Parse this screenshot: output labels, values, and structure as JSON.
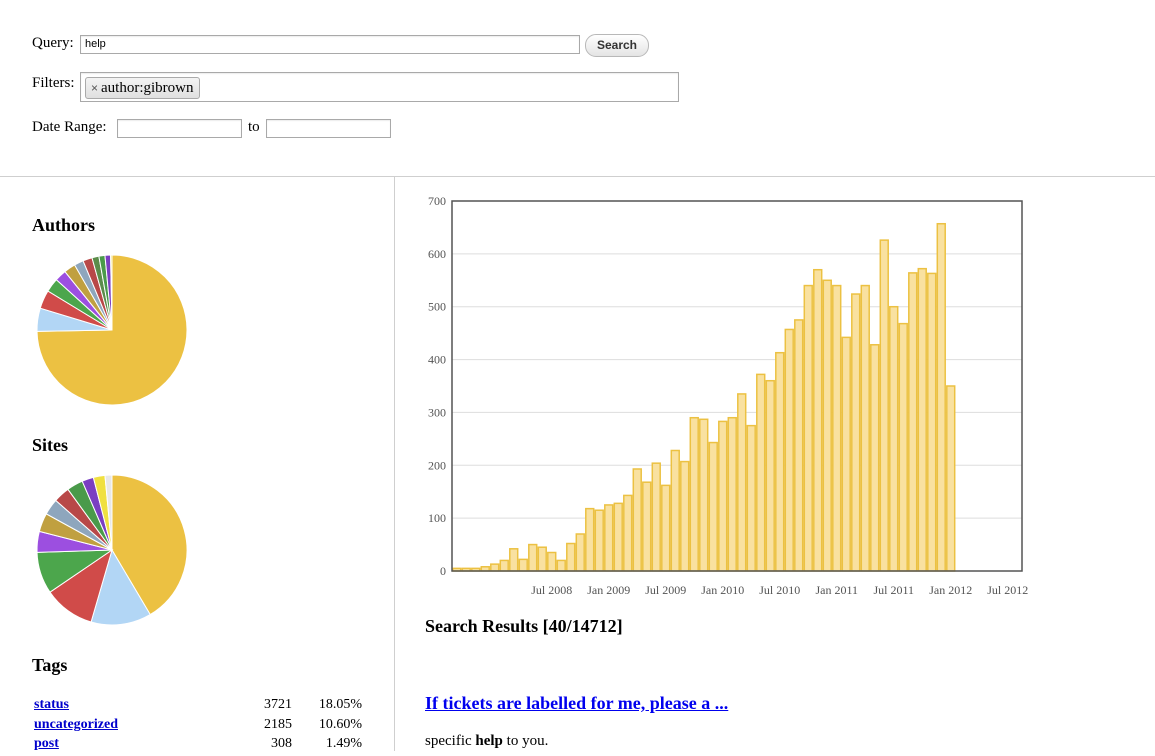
{
  "search": {
    "query_label": "Query:",
    "query_value": "help",
    "search_button": "Search",
    "filters_label": "Filters:",
    "filter_chip_remove": "×",
    "filter_chip": "author:gibrown",
    "date_range_label": "Date Range:",
    "date_to_label": "to",
    "date_from_value": "",
    "date_to_value": ""
  },
  "sidebar": {
    "authors_heading": "Authors",
    "sites_heading": "Sites",
    "tags_heading": "Tags",
    "tags": [
      {
        "name": "status",
        "count": "3721",
        "percent": "18.05%"
      },
      {
        "name": "uncategorized",
        "count": "2185",
        "percent": "10.60%"
      },
      {
        "name": "post",
        "count": "308",
        "percent": "1.49%"
      }
    ]
  },
  "pies": {
    "authors": {
      "values": [
        74.7,
        5.0,
        4.0,
        3.0,
        2.5,
        2.5,
        2.0,
        2.0,
        1.5,
        1.3,
        1.2,
        0.3
      ],
      "colors": [
        "#ecc142",
        "#b2d6f5",
        "#d04b49",
        "#4ca64c",
        "#9c4fe0",
        "#c0a040",
        "#8ea6bd",
        "#b84848",
        "#5b8c4a",
        "#4a9a4a",
        "#7a3ec2",
        "#f0e040"
      ]
    },
    "sites": {
      "values": [
        41.5,
        13.0,
        11.0,
        9.0,
        4.5,
        4.0,
        3.5,
        3.5,
        3.5,
        2.5,
        2.5,
        1.5
      ],
      "colors": [
        "#ecc142",
        "#b2d6f5",
        "#d04b49",
        "#4ca64c",
        "#9c4fe0",
        "#c0a040",
        "#8ea6bd",
        "#b84848",
        "#4a9a4a",
        "#7a3ec2",
        "#f0e040",
        "#e8e8e8"
      ]
    }
  },
  "chart_data": {
    "type": "bar",
    "title": "",
    "xlabel": "",
    "ylabel": "",
    "ylim": [
      0,
      700
    ],
    "yticks": [
      0,
      100,
      200,
      300,
      400,
      500,
      600,
      700
    ],
    "xtick_labels": [
      "Jul 2008",
      "Jan 2009",
      "Jul 2009",
      "Jan 2010",
      "Jul 2010",
      "Jan 2011",
      "Jul 2011",
      "Jan 2012",
      "Jul 2012"
    ],
    "categories": [
      "Sep 2007",
      "Oct 2007",
      "Nov 2007",
      "Dec 2007",
      "Jan 2008",
      "Feb 2008",
      "Mar 2008",
      "Apr 2008",
      "May 2008",
      "Jun 2008",
      "Jul 2008",
      "Aug 2008",
      "Sep 2008",
      "Oct 2008",
      "Nov 2008",
      "Dec 2008",
      "Jan 2009",
      "Feb 2009",
      "Mar 2009",
      "Apr 2009",
      "May 2009",
      "Jun 2009",
      "Jul 2009",
      "Aug 2009",
      "Sep 2009",
      "Oct 2009",
      "Nov 2009",
      "Dec 2009",
      "Jan 2010",
      "Feb 2010",
      "Mar 2010",
      "Apr 2010",
      "May 2010",
      "Jun 2010",
      "Jul 2010",
      "Aug 2010",
      "Sep 2010",
      "Oct 2010",
      "Nov 2010",
      "Dec 2010",
      "Jan 2011",
      "Feb 2011",
      "Mar 2011",
      "Apr 2011",
      "May 2011",
      "Jun 2011",
      "Jul 2011",
      "Aug 2011",
      "Sep 2011",
      "Oct 2011",
      "Nov 2011",
      "Dec 2011",
      "Jan 2012",
      "Feb 2012",
      "Mar 2012",
      "Apr 2012",
      "May 2012",
      "Jun 2012",
      "Jul 2012",
      "Aug 2012"
    ],
    "values": [
      5,
      5,
      5,
      8,
      13,
      20,
      42,
      22,
      50,
      45,
      35,
      20,
      52,
      70,
      118,
      115,
      125,
      128,
      143,
      193,
      168,
      204,
      162,
      228,
      207,
      290,
      287,
      243,
      283,
      290,
      335,
      275,
      372,
      360,
      413,
      457,
      475,
      540,
      570,
      550,
      540,
      442,
      524,
      540,
      428,
      626,
      500,
      468,
      564,
      572,
      563,
      657,
      350,
      0,
      0,
      0,
      0,
      0,
      0,
      0
    ],
    "bar_color": "#f9e1a0",
    "bar_stroke": "#ecc142"
  },
  "results": {
    "title": "Search Results [40/14712]",
    "first_link": "If tickets are labelled for me, please a ...",
    "snippet_before": "specific ",
    "snippet_bold": "help",
    "snippet_after": " to you."
  }
}
